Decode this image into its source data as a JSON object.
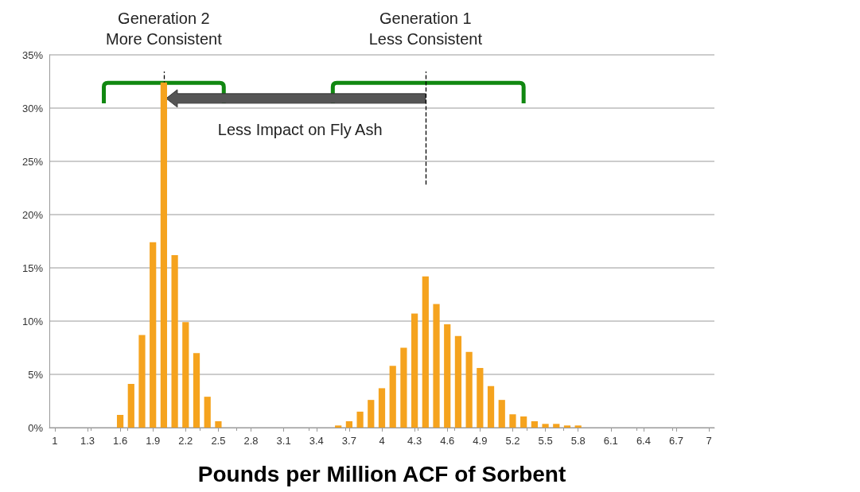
{
  "chart_data": {
    "type": "bar",
    "xlabel": "Pounds per Million ACF of Sorbent",
    "x": [
      1.6,
      1.7,
      1.8,
      1.9,
      2.0,
      2.1,
      2.2,
      2.3,
      2.4,
      2.5,
      3.6,
      3.7,
      3.8,
      3.9,
      4.0,
      4.1,
      4.2,
      4.3,
      4.4,
      4.5,
      4.6,
      4.7,
      4.8,
      4.9,
      5.0,
      5.1,
      5.2,
      5.3,
      5.4,
      5.5,
      5.6,
      5.7,
      5.8
    ],
    "values": [
      1.2,
      4.1,
      8.7,
      17.4,
      32.4,
      16.2,
      9.9,
      7.0,
      2.9,
      0.6,
      0.2,
      0.6,
      1.5,
      2.6,
      3.7,
      5.8,
      7.5,
      10.7,
      14.2,
      11.6,
      9.7,
      8.6,
      7.1,
      5.6,
      3.9,
      2.6,
      1.25,
      1.05,
      0.6,
      0.35,
      0.35,
      0.2,
      0.2
    ],
    "color": "#f5a31e",
    "xlim": [
      0.95,
      7.05
    ],
    "xticks": [
      1,
      1.3,
      1.6,
      1.9,
      2.2,
      2.5,
      2.8,
      3.1,
      3.4,
      3.7,
      4,
      4.3,
      4.6,
      4.9,
      5.2,
      5.5,
      5.8,
      6.1,
      6.4,
      6.7,
      7
    ],
    "ylim": [
      0,
      35
    ],
    "yticks": [
      {
        "value": 0,
        "label": "0%"
      },
      {
        "value": 5,
        "label": "5%"
      },
      {
        "value": 10,
        "label": "10%"
      },
      {
        "value": 15,
        "label": "15%"
      },
      {
        "value": 20,
        "label": "20%"
      },
      {
        "value": 25,
        "label": "25%"
      },
      {
        "value": 30,
        "label": "30%"
      },
      {
        "value": 35,
        "label": "35%"
      }
    ],
    "grid": "y",
    "ref_lines": [
      {
        "axis": "x",
        "value": 2.0,
        "color": "#000000",
        "line_style": "dashed"
      },
      {
        "axis": "x",
        "value": 4.4,
        "color": "#000000",
        "line_style": "dashed"
      }
    ],
    "annotations": [
      "Generation 2\nMore Consistent",
      "Generation 1\nLess Consistent",
      "Less Impact on Fly Ash"
    ]
  }
}
